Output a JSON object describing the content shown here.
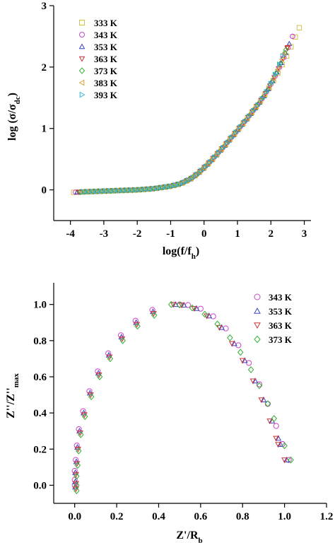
{
  "chart_data": [
    {
      "type": "scatter",
      "title": "",
      "xlabel": "log(f/f",
      "xlabel_sub": "h",
      "xlabel_suffix": ")",
      "ylabel": "log (σ/σ",
      "ylabel_sub": "dc",
      "ylabel_suffix": ")",
      "xlim": [
        -4.5,
        3.2
      ],
      "ylim": [
        -0.5,
        3
      ],
      "xticks": [
        -4,
        -3,
        -2,
        -1,
        0,
        1,
        2,
        3
      ],
      "yticks": [
        0,
        1,
        2,
        3
      ],
      "legend_position": "top-left",
      "master_curve": {
        "x": [
          -3.9,
          -3.5,
          -3.0,
          -2.5,
          -2.0,
          -1.5,
          -1.0,
          -0.7,
          -0.4,
          -0.2,
          0.0,
          0.2,
          0.4,
          0.6,
          0.8,
          1.0,
          1.3,
          1.6,
          1.9,
          2.2,
          2.5,
          2.8
        ],
        "y": [
          -0.04,
          -0.03,
          -0.02,
          -0.01,
          0.0,
          0.02,
          0.06,
          0.1,
          0.18,
          0.26,
          0.36,
          0.47,
          0.59,
          0.71,
          0.84,
          0.97,
          1.17,
          1.38,
          1.6,
          1.84,
          2.09,
          2.36
        ]
      },
      "series": [
        {
          "name": "333 K",
          "marker": "square",
          "color": "#d4c34a",
          "x_range": [
            -3.9,
            2.85
          ],
          "end_y": 2.64
        },
        {
          "name": "343 K",
          "marker": "circle",
          "color": "#cc44cc",
          "x_range": [
            -3.85,
            2.65
          ],
          "end_y": 2.5
        },
        {
          "name": "353 K",
          "marker": "triangle-up",
          "color": "#3a46c8",
          "x_range": [
            -3.8,
            2.55
          ],
          "end_y": 2.38
        },
        {
          "name": "363 K",
          "marker": "triangle-down",
          "color": "#cc3333",
          "x_range": [
            -3.75,
            2.5
          ],
          "end_y": 2.32
        },
        {
          "name": "373 K",
          "marker": "diamond",
          "color": "#33b033",
          "x_range": [
            -3.7,
            2.45
          ],
          "end_y": 2.28
        },
        {
          "name": "383 K",
          "marker": "triangle-left",
          "color": "#d4a43a",
          "x_range": [
            -3.65,
            2.4
          ],
          "end_y": 2.22
        },
        {
          "name": "393 K",
          "marker": "triangle-right",
          "color": "#33b8d4",
          "x_range": [
            -3.6,
            2.35
          ],
          "end_y": 2.18
        }
      ]
    },
    {
      "type": "scatter",
      "title": "",
      "xlabel": "Z'/R",
      "xlabel_sub": "b",
      "xlabel_suffix": "",
      "ylabel": "Z''/Z''",
      "ylabel_sub": "max",
      "ylabel_suffix": "",
      "xlim": [
        -0.1,
        1.2
      ],
      "ylim": [
        -0.1,
        1.12
      ],
      "xticks": [
        0.0,
        0.2,
        0.4,
        0.6,
        0.8,
        1.0,
        1.2
      ],
      "yticks": [
        0.0,
        0.2,
        0.4,
        0.6,
        0.8,
        1.0
      ],
      "tick_decimals": 1,
      "legend_position": "top-right",
      "series": [
        {
          "name": "343 K",
          "marker": "circle",
          "color": "#cc44cc",
          "r_end": 1.02,
          "peak_x": 0.5
        },
        {
          "name": "353 K",
          "marker": "triangle-up",
          "color": "#3a46c8",
          "r_end": 1.01,
          "peak_x": 0.48
        },
        {
          "name": "363 K",
          "marker": "triangle-down",
          "color": "#cc3333",
          "r_end": 1.0,
          "peak_x": 0.47
        },
        {
          "name": "373 K",
          "marker": "diamond",
          "color": "#33b033",
          "r_end": 1.03,
          "peak_x": 0.46
        }
      ]
    }
  ]
}
